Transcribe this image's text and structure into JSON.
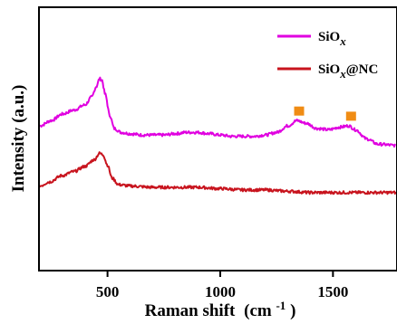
{
  "chart_data": {
    "type": "line",
    "title": "",
    "xlabel": {
      "main": "Raman shift",
      "unit_open": "(cm",
      "unit_sup": "-1",
      "unit_close": ")"
    },
    "ylabel": "Intensity (a.u.)",
    "xlim": [
      200,
      1780
    ],
    "ylim": [
      0,
      100
    ],
    "x_ticks": [
      500,
      1000,
      1500
    ],
    "x_tick_labels": [
      "500",
      "1000",
      "1500"
    ],
    "y_ticks": [],
    "grid": false,
    "legend_position": "top-right",
    "series": [
      {
        "name": "SiOx",
        "legend": {
          "main": "SiO",
          "sub": "x",
          "suffix": ""
        },
        "color": "#e000e0",
        "points": [
          [
            200,
            55
          ],
          [
            250,
            57
          ],
          [
            300,
            59.5
          ],
          [
            350,
            61
          ],
          [
            400,
            63
          ],
          [
            430,
            66
          ],
          [
            450,
            70
          ],
          [
            465,
            73
          ],
          [
            475,
            72.5
          ],
          [
            490,
            67
          ],
          [
            510,
            59
          ],
          [
            530,
            54
          ],
          [
            560,
            52.5
          ],
          [
            600,
            52
          ],
          [
            650,
            51.5
          ],
          [
            700,
            51.5
          ],
          [
            750,
            51.5
          ],
          [
            800,
            52
          ],
          [
            850,
            52.5
          ],
          [
            900,
            52.5
          ],
          [
            950,
            52
          ],
          [
            1000,
            51.5
          ],
          [
            1050,
            51
          ],
          [
            1100,
            51
          ],
          [
            1150,
            51
          ],
          [
            1200,
            51.5
          ],
          [
            1250,
            52.5
          ],
          [
            1300,
            55
          ],
          [
            1340,
            57
          ],
          [
            1380,
            56
          ],
          [
            1430,
            54
          ],
          [
            1480,
            53.5
          ],
          [
            1530,
            54.5
          ],
          [
            1570,
            55
          ],
          [
            1600,
            53.5
          ],
          [
            1650,
            50
          ],
          [
            1700,
            48
          ],
          [
            1780,
            47.5
          ]
        ]
      },
      {
        "name": "SiOx@NC",
        "legend": {
          "main": "SiO",
          "sub": "x",
          "suffix": "@NC"
        },
        "color": "#c8141e",
        "points": [
          [
            200,
            32
          ],
          [
            240,
            33.5
          ],
          [
            300,
            36
          ],
          [
            350,
            37.5
          ],
          [
            400,
            39.5
          ],
          [
            440,
            42
          ],
          [
            465,
            44.5
          ],
          [
            480,
            44
          ],
          [
            500,
            40
          ],
          [
            520,
            35
          ],
          [
            550,
            32.5
          ],
          [
            600,
            32
          ],
          [
            700,
            31.5
          ],
          [
            800,
            31.5
          ],
          [
            900,
            31.5
          ],
          [
            1000,
            31
          ],
          [
            1100,
            30.5
          ],
          [
            1200,
            30.5
          ],
          [
            1300,
            30
          ],
          [
            1400,
            29.5
          ],
          [
            1500,
            29.5
          ],
          [
            1600,
            29.5
          ],
          [
            1700,
            29.5
          ],
          [
            1780,
            29.5
          ]
        ]
      }
    ],
    "markers": [
      {
        "x": 1350,
        "y": 60.5,
        "shape": "square",
        "color": "#f08c14"
      },
      {
        "x": 1580,
        "y": 58.5,
        "shape": "square",
        "color": "#f08c14"
      }
    ]
  }
}
